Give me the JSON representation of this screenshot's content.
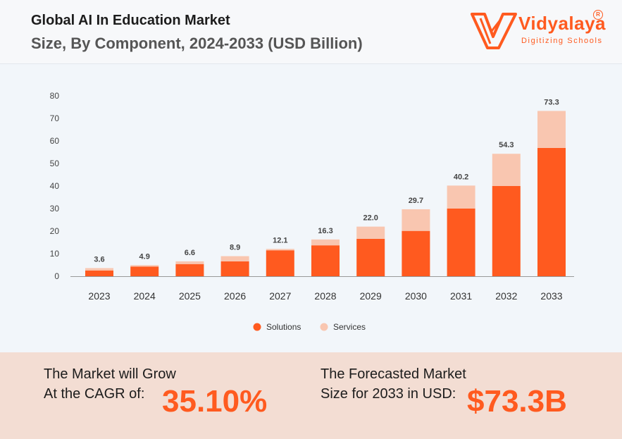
{
  "header": {
    "title": "Global AI In Education Market",
    "subtitle": "Size, By Component, 2024-2033 (USD Billion)"
  },
  "logo": {
    "name": "Vidyalaya",
    "tagline": "Digitizing Schools",
    "registered": "R"
  },
  "chart_data": {
    "type": "bar",
    "stacked": true,
    "categories": [
      "2023",
      "2024",
      "2025",
      "2026",
      "2027",
      "2028",
      "2029",
      "2030",
      "2031",
      "2032",
      "2033"
    ],
    "series": [
      {
        "name": "Solutions",
        "color": "#ff5a1f",
        "values": [
          2.5,
          4.3,
          5.4,
          6.6,
          11.5,
          13.7,
          16.6,
          20.1,
          30.0,
          40.0,
          56.9
        ]
      },
      {
        "name": "Services",
        "color": "#f9c6b0",
        "values": [
          1.1,
          0.6,
          1.2,
          2.3,
          0.6,
          2.6,
          5.4,
          9.6,
          10.2,
          14.3,
          16.4
        ]
      }
    ],
    "totals": [
      "3.6",
      "4.9",
      "6.6",
      "8.9",
      "12.1",
      "16.3",
      "22.0",
      "29.7",
      "40.2",
      "54.3",
      "73.3"
    ],
    "yticks": [
      "0",
      "10",
      "20",
      "30",
      "40",
      "50",
      "60",
      "70",
      "80"
    ],
    "ylim": [
      0,
      80
    ],
    "grid": false,
    "legend_position": "bottom-center"
  },
  "footer": {
    "cagr_label_line1": "The Market will Grow",
    "cagr_label_line2": "At the CAGR of:",
    "cagr_value": "35.10%",
    "forecast_label_line1": "The Forecasted Market",
    "forecast_label_line2": "Size for 2033 in USD:",
    "forecast_value": "$73.3B"
  }
}
